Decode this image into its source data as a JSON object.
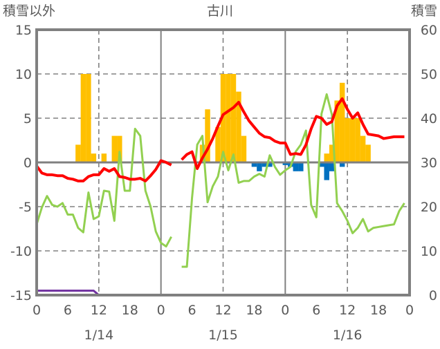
{
  "chart_data": {
    "type": "bar+line",
    "title": "古川",
    "left_axis_label": "積雪以外",
    "right_axis_label": "積雪",
    "ylim_left": [
      -15,
      15
    ],
    "ylim_right": [
      0,
      60
    ],
    "yticks_left": [
      "15",
      "10",
      "5",
      "0",
      "-5",
      "-10",
      "-15"
    ],
    "yticks_right": [
      "60",
      "50",
      "40",
      "30",
      "20",
      "10",
      "0"
    ],
    "xticks": [
      "0",
      "6",
      "12",
      "18",
      "0",
      "6",
      "12",
      "18",
      "0",
      "6",
      "12",
      "18",
      "0"
    ],
    "dates": [
      "1/14",
      "1/15",
      "1/16"
    ],
    "hours_total": 72,
    "grid": true,
    "bars_positive": {
      "color": "#FFC000",
      "points": [
        [
          8,
          2
        ],
        [
          9,
          10
        ],
        [
          10,
          10
        ],
        [
          11,
          1
        ],
        [
          13,
          1
        ],
        [
          15,
          3
        ],
        [
          16,
          3
        ],
        [
          32,
          2
        ],
        [
          33,
          6
        ],
        [
          35,
          4
        ],
        [
          36,
          10
        ],
        [
          37,
          10
        ],
        [
          38,
          10
        ],
        [
          39,
          8
        ],
        [
          40,
          3
        ],
        [
          56,
          1
        ],
        [
          57,
          2
        ],
        [
          58,
          7
        ],
        [
          59,
          9
        ],
        [
          60,
          5
        ],
        [
          61,
          5
        ],
        [
          62,
          5
        ],
        [
          63,
          3
        ],
        [
          64,
          2
        ]
      ]
    },
    "bars_negative": {
      "color": "#0070C0",
      "points": [
        [
          42,
          -0.5
        ],
        [
          43,
          -1
        ],
        [
          44,
          -0.5
        ],
        [
          45,
          -0.5
        ],
        [
          48,
          -0.3
        ],
        [
          49,
          -0.5
        ],
        [
          50,
          -1
        ],
        [
          51,
          -1
        ],
        [
          55,
          -0.5
        ],
        [
          56,
          -2
        ],
        [
          57,
          -1
        ],
        [
          59,
          -0.5
        ]
      ]
    },
    "lines": [
      {
        "color": "#92D050",
        "axis": "left",
        "values": [
          -7.0,
          -5.1,
          -3.8,
          -4.8,
          -5.0,
          -4.6,
          -5.9,
          -5.9,
          -7.4,
          -7.9,
          -3.4,
          -6.4,
          -6.1,
          -3.2,
          -3.3,
          -6.6,
          1.2,
          -3.2,
          -3.2,
          3.8,
          3.0,
          -3.2,
          -5.0,
          -7.8,
          -9.1,
          -9.5,
          -8.4,
          null,
          -11.8,
          -11.8,
          -4.0,
          2.0,
          3.0,
          -4.5,
          -2.7,
          -1.6,
          1.2,
          -0.9,
          0.9,
          -2.3,
          -2.1,
          -2.1,
          -1.6,
          -1.3,
          -1.6,
          0.8,
          -0.5,
          -1.4,
          -0.9,
          -0.5,
          1.2,
          2.0,
          3.6,
          -4.8,
          -6.2,
          5.5,
          7.7,
          5.4,
          -4.6,
          -5.5,
          -6.6,
          -8.0,
          -7.4,
          -6.4,
          -7.8,
          -7.4,
          -7.3,
          -7.2,
          -7.1,
          -7.0,
          -5.5,
          -4.6
        ]
      },
      {
        "color": "#FF0000",
        "axis": "left",
        "values": [
          -0.4,
          -1.2,
          -1.4,
          -1.4,
          -1.5,
          -1.5,
          -1.8,
          -1.9,
          -2.1,
          -2.1,
          -1.6,
          -1.4,
          -1.4,
          -0.7,
          -1.0,
          -0.7,
          -1.6,
          -1.7,
          -1.9,
          -1.9,
          -1.8,
          -2.1,
          -1.5,
          -0.8,
          0.2,
          0.0,
          -0.3,
          null,
          0.3,
          0.9,
          1.2,
          -0.7,
          0.5,
          1.5,
          2.7,
          4.1,
          5.4,
          5.8,
          6.2,
          6.8,
          5.7,
          4.7,
          4.0,
          3.3,
          2.9,
          2.8,
          2.4,
          2.2,
          2.2,
          0.9,
          1.0,
          0.9,
          2.0,
          3.8,
          5.2,
          5.0,
          4.3,
          4.6,
          6.4,
          7.2,
          6.0,
          5.0,
          5.6,
          4.3,
          3.2,
          3.1,
          3.0,
          2.7,
          2.8,
          2.9,
          2.9,
          2.9
        ]
      },
      {
        "color": "#7030A0",
        "axis": "right",
        "values": [
          1,
          1,
          1,
          1,
          1,
          1,
          1,
          1,
          1,
          1,
          1,
          1,
          0,
          0,
          0,
          0,
          0,
          0,
          0,
          0,
          0,
          0,
          0,
          0,
          0,
          0,
          0,
          null,
          0,
          0,
          0,
          0,
          0,
          0,
          0,
          0,
          0,
          0,
          0,
          0,
          0,
          0,
          0,
          0,
          0,
          0,
          0,
          0,
          0,
          0,
          0,
          0,
          0,
          0,
          0,
          0,
          0,
          0,
          0,
          0,
          0,
          0,
          0,
          0,
          0,
          0,
          0,
          0,
          0,
          0,
          0,
          0
        ]
      }
    ]
  }
}
